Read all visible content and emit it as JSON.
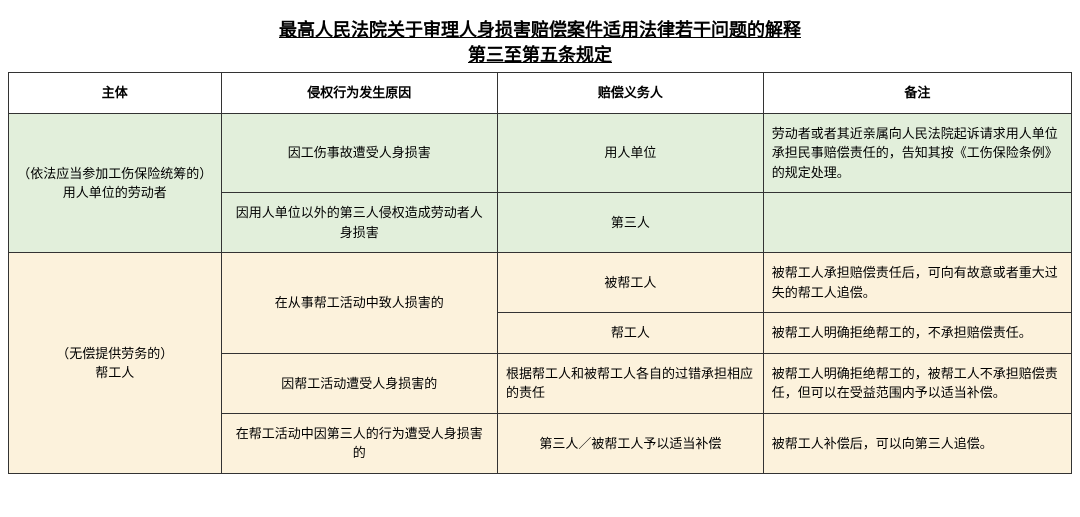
{
  "title_line1": "最高人民法院关于审理人身损害赔偿案件适用法律若干问题的解释",
  "title_line2": "第三至第五条规定",
  "headers": {
    "subject": "主体",
    "cause": "侵权行为发生原因",
    "obligor": "赔偿义务人",
    "remark": "备注"
  },
  "group_green": {
    "subject_line1": "（依法应当参加工伤保险统筹的）",
    "subject_line2": "用人单位的劳动者",
    "row1": {
      "cause": "因工伤事故遭受人身损害",
      "obligor": "用人单位",
      "remark": "劳动者或者其近亲属向人民法院起诉请求用人单位承担民事赔偿责任的，告知其按《工伤保险条例》的规定处理。"
    },
    "row2": {
      "cause": "因用人单位以外的第三人侵权造成劳动者人身损害",
      "obligor": "第三人",
      "remark": ""
    }
  },
  "group_yellow": {
    "subject_line1": "（无偿提供劳务的）",
    "subject_line2": "帮工人",
    "row1": {
      "cause": "在从事帮工活动中致人损害的",
      "obligor": "被帮工人",
      "remark": "被帮工人承担赔偿责任后，可向有故意或者重大过失的帮工人追偿。"
    },
    "row2": {
      "obligor": "帮工人",
      "remark": "被帮工人明确拒绝帮工的，不承担赔偿责任。"
    },
    "row3": {
      "cause": "因帮工活动遭受人身损害的",
      "obligor": "根据帮工人和被帮工人各自的过错承担相应的责任",
      "remark": "被帮工人明确拒绝帮工的，被帮工人不承担赔偿责任，但可以在受益范围内予以适当补偿。"
    },
    "row4": {
      "cause": "在帮工活动中因第三人的行为遭受人身损害的",
      "obligor": "第三人／被帮工人予以适当补偿",
      "remark": "被帮工人补偿后，可以向第三人追偿。"
    }
  },
  "colors": {
    "green_bg": "#e2efdb",
    "yellow_bg": "#fcf2dc",
    "border": "#333333",
    "text": "#000000"
  },
  "font": {
    "title_size_pt": 14,
    "cell_size_pt": 10,
    "title_weight": "bold"
  }
}
